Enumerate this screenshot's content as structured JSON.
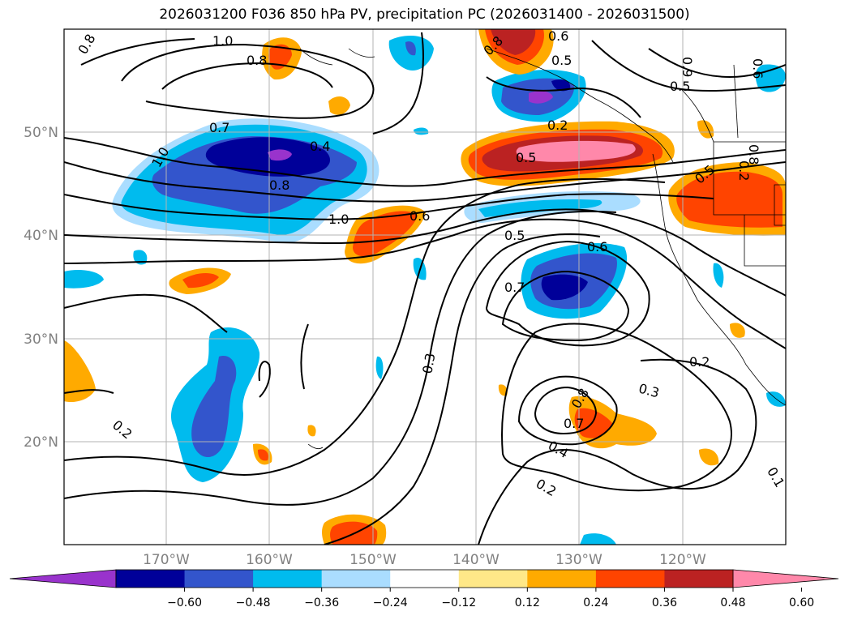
{
  "title": "2026031200 F036 850 hPa PV, precipitation PC (2026031400 - 2026031500)",
  "lat_labels": [
    "50°N",
    "40°N",
    "30°N",
    "20°N"
  ],
  "lon_labels": [
    "170°W",
    "160°W",
    "150°W",
    "140°W",
    "130°W",
    "120°W"
  ],
  "colorbar": {
    "ticks": [
      "−0.60",
      "−0.48",
      "−0.36",
      "−0.24",
      "−0.12",
      "0.12",
      "0.24",
      "0.36",
      "0.48",
      "0.60"
    ],
    "colors": [
      "#9933cc",
      "#000099",
      "#3355cc",
      "#00bbee",
      "#aaddff",
      "#ffffff",
      "#ffe888",
      "#ffaa00",
      "#ff4400",
      "#bb2222",
      "#ff88aa"
    ]
  },
  "contour_labels": [
    "0.8",
    "1.0",
    "0.8",
    "0.6",
    "0.5",
    "0.8",
    "0.7",
    "1.0",
    "0.4",
    "0.8",
    "1.0",
    "0.6",
    "0.2",
    "0.5",
    "0.5",
    "0.6",
    "0.7",
    "0.3",
    "0.8",
    "0.7",
    "0.4",
    "0.2",
    "0.3",
    "0.2",
    "0.2",
    "0.1",
    "0.9",
    "0.6",
    "0.8",
    "0.5",
    "0.2",
    "0.5"
  ]
}
